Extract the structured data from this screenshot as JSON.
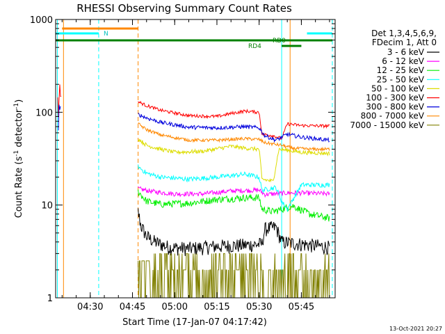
{
  "chart_data": {
    "type": "line",
    "title": "RHESSI Observing Summary Count Rates",
    "xlabel": "Start Time (17-Jan-07 04:17:42)",
    "ylabel_main": "Count Rate (s",
    "ylabel_sup1": "-1",
    "ylabel_mid": " detector",
    "ylabel_sup2": "-1",
    "ylabel_end": ")",
    "x_range_minutes": [
      "04:17:42",
      "05:57:00"
    ],
    "yscale": "log",
    "ylim": [
      1,
      1000
    ],
    "x_ticks": [
      {
        "label": "04:30",
        "t": "04:30"
      },
      {
        "label": "04:45",
        "t": "04:45"
      },
      {
        "label": "05:00",
        "t": "05:00"
      },
      {
        "label": "05:15",
        "t": "05:15"
      },
      {
        "label": "05:30",
        "t": "05:30"
      },
      {
        "label": "05:45",
        "t": "05:45"
      }
    ],
    "y_ticks": [
      {
        "label": "1",
        "v": 1
      },
      {
        "label": "10",
        "v": 10
      },
      {
        "label": "100",
        "v": 100
      },
      {
        "label": "1000",
        "v": 1000
      }
    ],
    "legend_header": [
      "Det 1,3,4,5,6,9,",
      "FDecim 1, Att 0"
    ],
    "series": [
      {
        "name": "3 - 6 keV",
        "color": "#000000",
        "points": [
          [
            "04:47:00",
            8.5
          ],
          [
            "04:48:00",
            6.0
          ],
          [
            "04:50:00",
            4.6
          ],
          [
            "04:53:00",
            4.0
          ],
          [
            "04:58:00",
            3.5
          ],
          [
            "05:05:00",
            3.4
          ],
          [
            "05:15:00",
            3.6
          ],
          [
            "05:25:00",
            3.7
          ],
          [
            "05:31:00",
            3.8
          ],
          [
            "05:32:00",
            5.5
          ],
          [
            "05:36:00",
            5.8
          ],
          [
            "05:38:00",
            4.0
          ],
          [
            "05:45:00",
            3.8
          ],
          [
            "05:52:00",
            3.6
          ],
          [
            "05:55:00",
            3.5
          ]
        ]
      },
      {
        "name": "6 - 12 keV",
        "color": "#ff00ff",
        "points": [
          [
            "04:47:00",
            15
          ],
          [
            "04:52:00",
            14
          ],
          [
            "05:00:00",
            13.2
          ],
          [
            "05:10:00",
            13.2
          ],
          [
            "05:20:00",
            14.2
          ],
          [
            "05:30:00",
            14.5
          ],
          [
            "05:32:00",
            13.0
          ],
          [
            "05:40:00",
            13.5
          ],
          [
            "05:45:00",
            13.5
          ],
          [
            "05:55:00",
            13.2
          ]
        ]
      },
      {
        "name": "12 - 25 keV",
        "color": "#00ee00",
        "points": [
          [
            "04:47:00",
            14
          ],
          [
            "04:50:00",
            11
          ],
          [
            "04:55:00",
            10.2
          ],
          [
            "05:05:00",
            10.5
          ],
          [
            "05:15:00",
            11.5
          ],
          [
            "05:25:00",
            12
          ],
          [
            "05:30:00",
            12
          ],
          [
            "05:31:00",
            9
          ],
          [
            "05:35:00",
            8.5
          ],
          [
            "05:42:00",
            9.8
          ],
          [
            "05:48:00",
            8
          ],
          [
            "05:55:00",
            7.2
          ]
        ]
      },
      {
        "name": "25 - 50 keV",
        "color": "#00ffff",
        "points": [
          [
            "04:47:00",
            26
          ],
          [
            "04:50:00",
            22
          ],
          [
            "04:55:00",
            20
          ],
          [
            "05:05:00",
            19
          ],
          [
            "05:15:00",
            20
          ],
          [
            "05:25:00",
            21.5
          ],
          [
            "05:30:00",
            20
          ],
          [
            "05:31:00",
            14.5
          ],
          [
            "05:36:00",
            15.5
          ],
          [
            "05:38:00",
            11
          ],
          [
            "05:40:00",
            9
          ],
          [
            "05:45:00",
            16.5
          ],
          [
            "05:55:00",
            16.5
          ]
        ]
      },
      {
        "name": "50 - 100 keV",
        "color": "#dddd00",
        "points": [
          [
            "04:47:00",
            52
          ],
          [
            "04:50:00",
            44
          ],
          [
            "04:55:00",
            40
          ],
          [
            "05:00:00",
            37
          ],
          [
            "05:10:00",
            38
          ],
          [
            "05:20:00",
            43
          ],
          [
            "05:25:00",
            41
          ],
          [
            "05:30:00",
            40
          ],
          [
            "05:31:00",
            19
          ],
          [
            "05:35:00",
            18
          ],
          [
            "05:37:00",
            40
          ],
          [
            "05:40:00",
            39
          ],
          [
            "05:45:00",
            37
          ],
          [
            "05:55:00",
            36
          ]
        ]
      },
      {
        "name": "100 - 300 keV",
        "color": "#ff0000",
        "points": [
          [
            "04:47:00",
            130
          ],
          [
            "04:50:00",
            118
          ],
          [
            "04:55:00",
            105
          ],
          [
            "05:05:00",
            92
          ],
          [
            "05:15:00",
            90
          ],
          [
            "05:20:00",
            97
          ],
          [
            "05:25:00",
            103
          ],
          [
            "05:30:00",
            100
          ],
          [
            "05:31:00",
            58
          ],
          [
            "05:35:00",
            56
          ],
          [
            "05:38:00",
            52
          ],
          [
            "05:40:00",
            75
          ],
          [
            "05:45:00",
            72
          ],
          [
            "05:55:00",
            71
          ]
        ]
      },
      {
        "name": "300 - 800 keV",
        "color": "#0000dd",
        "points": [
          [
            "04:47:00",
            95
          ],
          [
            "04:50:00",
            87
          ],
          [
            "04:55:00",
            78
          ],
          [
            "05:05:00",
            69
          ],
          [
            "05:15:00",
            68
          ],
          [
            "05:25:00",
            70
          ],
          [
            "05:30:00",
            68
          ],
          [
            "05:32:00",
            56
          ],
          [
            "05:36:00",
            50
          ],
          [
            "05:40:00",
            58
          ],
          [
            "05:45:00",
            54
          ],
          [
            "05:55:00",
            50
          ]
        ]
      },
      {
        "name": "800 - 7000 keV",
        "color": "#ff8800",
        "points": [
          [
            "04:47:00",
            75
          ],
          [
            "04:50:00",
            65
          ],
          [
            "04:55:00",
            57
          ],
          [
            "05:05:00",
            50
          ],
          [
            "05:15:00",
            50
          ],
          [
            "05:25:00",
            52
          ],
          [
            "05:30:00",
            51
          ],
          [
            "05:32:00",
            47
          ],
          [
            "05:38:00",
            44
          ],
          [
            "05:42:00",
            41
          ],
          [
            "05:48:00",
            40
          ],
          [
            "05:55:00",
            40
          ]
        ]
      },
      {
        "name": "7000 - 15000 keV",
        "color": "#808000",
        "points": [
          [
            "04:47:00",
            2
          ],
          [
            "04:50:00",
            1.6
          ],
          [
            "05:00:00",
            1.5
          ],
          [
            "05:15:00",
            1.6
          ],
          [
            "05:25:00",
            2.1
          ],
          [
            "05:32:00",
            2.0
          ],
          [
            "05:38:00",
            1.8
          ],
          [
            "05:45:00",
            1.8
          ],
          [
            "05:55:00",
            1.8
          ]
        ]
      }
    ],
    "pre_gap_spike": {
      "color_red": "#ff0000",
      "color_blue": "#0000dd"
    },
    "flag_bars": [
      {
        "label": "N",
        "color": "#00ffff",
        "row": "upper",
        "segments": [
          [
            "04:17:42",
            "04:33:00"
          ],
          [
            "05:47:00",
            "05:56:00"
          ]
        ]
      },
      {
        "label": "",
        "color": "#ff8800",
        "row": "top",
        "segments": [
          [
            "04:20:00",
            "04:47:00"
          ]
        ]
      },
      {
        "label": "RD0",
        "color": "#008000",
        "row": "middle",
        "segments": [
          [
            "04:17:42",
            "05:56:00"
          ]
        ]
      },
      {
        "label": "RD4",
        "color": "#008000",
        "row": "lower",
        "segments": [
          [
            "05:38:00",
            "05:45:00"
          ]
        ]
      }
    ],
    "vertical_markers": [
      {
        "t": "04:18:20",
        "color": "#00ffff",
        "style": "solid"
      },
      {
        "t": "04:20:30",
        "color": "#ff8800",
        "style": "solid"
      },
      {
        "t": "04:33:00",
        "color": "#00ffff",
        "style": "dashed"
      },
      {
        "t": "04:47:00",
        "color": "#ff8800",
        "style": "dashed"
      },
      {
        "t": "05:38:00",
        "color": "#00ffff",
        "style": "solid"
      },
      {
        "t": "05:41:00",
        "color": "#ff8800",
        "style": "solid"
      },
      {
        "t": "05:56:00",
        "color": "#00ffff",
        "style": "dashed"
      }
    ],
    "grid": false,
    "legend_position": "right"
  },
  "footer_timestamp": "13-Oct-2021 20:27"
}
